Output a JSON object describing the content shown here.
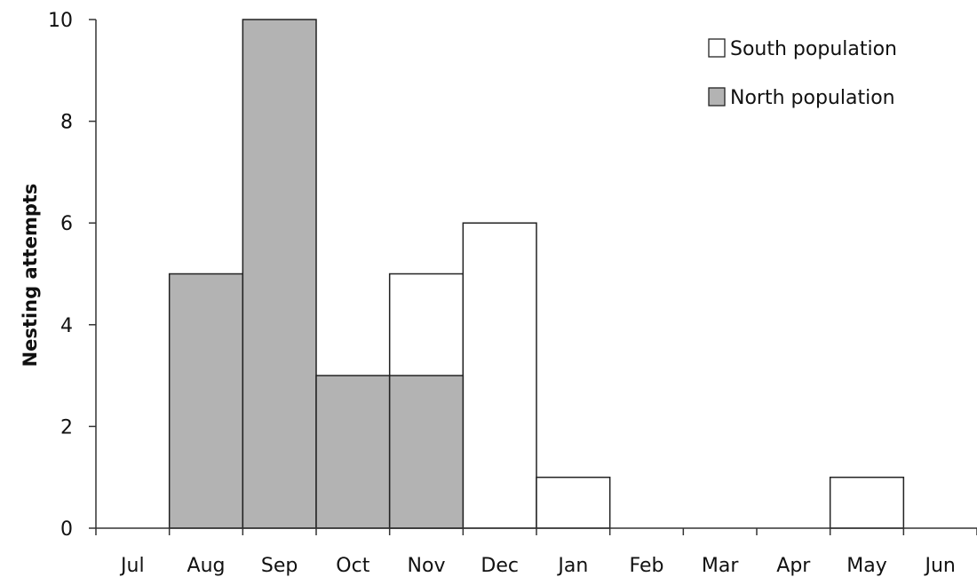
{
  "chart_data": {
    "type": "bar",
    "stacking": "overlapping",
    "title": "",
    "xlabel": "",
    "ylabel": "Nesting attempts",
    "ylim": [
      0,
      10
    ],
    "yticks": [
      0,
      2,
      4,
      6,
      8,
      10
    ],
    "grid": false,
    "legend_position": "top-right",
    "categories": [
      "Jul",
      "Aug",
      "Sep",
      "Oct",
      "Nov",
      "Dec",
      "Jan",
      "Feb",
      "Mar",
      "Apr",
      "May",
      "Jun"
    ],
    "series": [
      {
        "name": "South population",
        "color": "#ffffff",
        "values": [
          0,
          0,
          0,
          0,
          5,
          6,
          1,
          0,
          0,
          0,
          1,
          0
        ]
      },
      {
        "name": "North population",
        "color": "#b3b3b3",
        "values": [
          0,
          5,
          10,
          3,
          3,
          0,
          0,
          0,
          0,
          0,
          0,
          0
        ]
      }
    ]
  }
}
